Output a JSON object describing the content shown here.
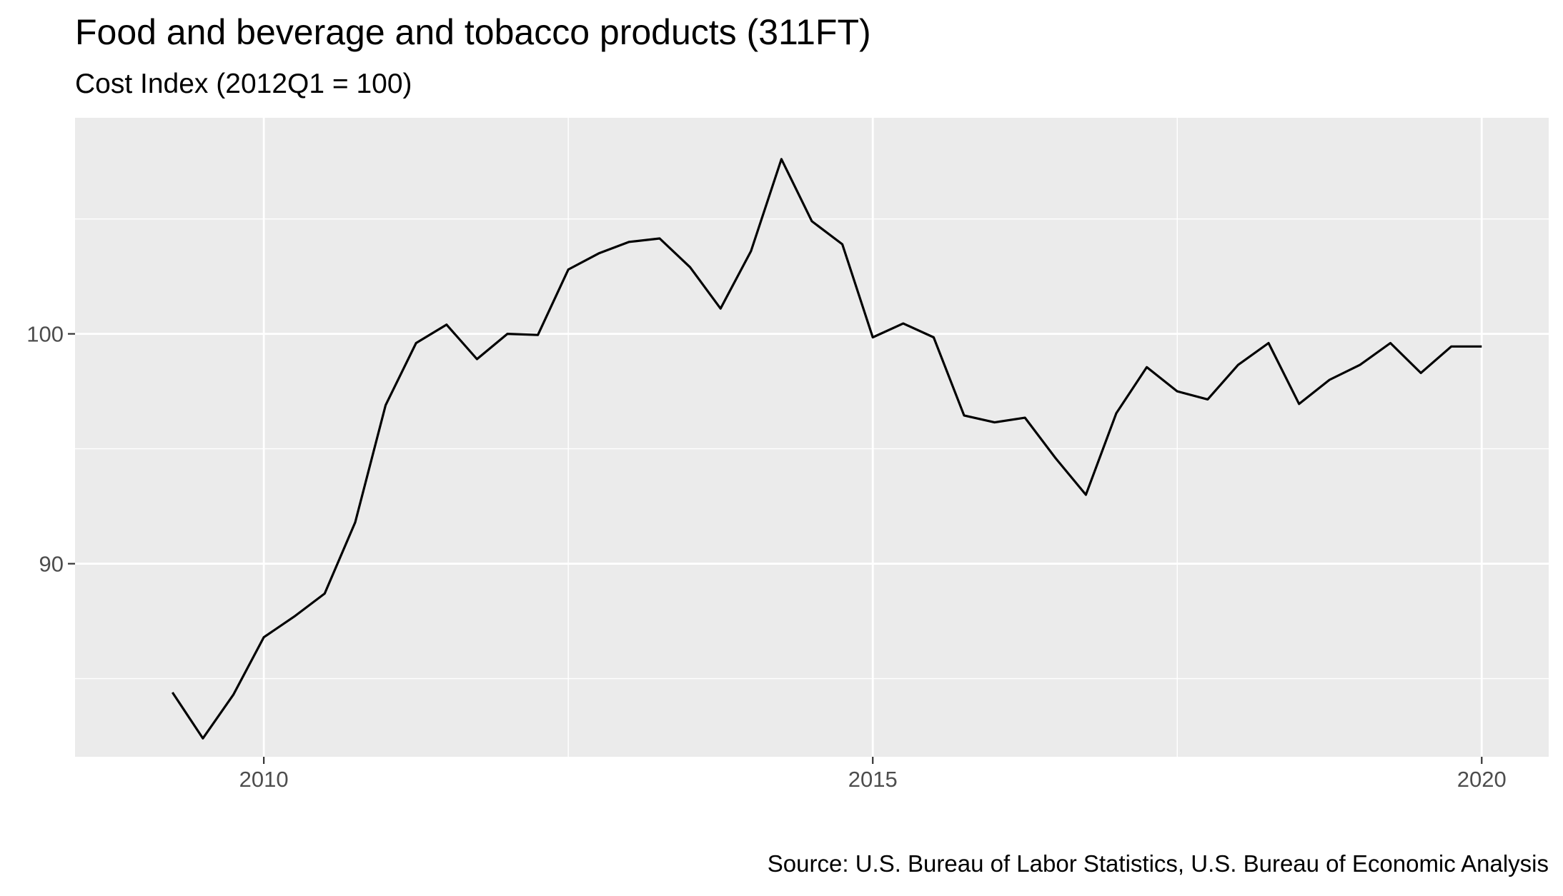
{
  "chart_data": {
    "type": "line",
    "title": "Food and beverage and tobacco products (311FT)",
    "subtitle": "Cost Index (2012Q1 = 100)",
    "caption": "Source: U.S. Bureau of Labor Statistics, U.S. Bureau of Economic Analysis",
    "xlabel": "",
    "ylabel": "",
    "xlim": [
      2008.45,
      2020.55
    ],
    "ylim": [
      81.6,
      109.4
    ],
    "x_ticks": [
      {
        "value": 2010,
        "label": "2010"
      },
      {
        "value": 2015,
        "label": "2015"
      },
      {
        "value": 2020,
        "label": "2020"
      }
    ],
    "x_minor_ticks": [
      2012.5,
      2017.5
    ],
    "y_ticks": [
      {
        "value": 90,
        "label": "90"
      },
      {
        "value": 100,
        "label": "100"
      }
    ],
    "y_minor_ticks": [
      85,
      95,
      105
    ],
    "grid": true,
    "legend": "none",
    "colors": {
      "background": "#ebebeb",
      "grid": "#ffffff",
      "line": "#000000",
      "tick": "#333333"
    },
    "series": [
      {
        "x": [
          2009.25,
          2009.5,
          2009.75,
          2010.0,
          2010.25,
          2010.5,
          2010.75,
          2011.0,
          2011.25,
          2011.5,
          2011.75,
          2012.0,
          2012.25,
          2012.5,
          2012.75,
          2013.0,
          2013.25,
          2013.5,
          2013.75,
          2014.0,
          2014.25,
          2014.5,
          2014.75,
          2015.0,
          2015.25,
          2015.5,
          2015.75,
          2016.0,
          2016.25,
          2016.5,
          2016.75,
          2017.0,
          2017.25,
          2017.5,
          2017.75,
          2018.0,
          2018.25,
          2018.5,
          2018.75,
          2019.0,
          2019.25,
          2019.5,
          2019.75,
          2020.0
        ],
        "values": [
          84.4,
          82.4,
          84.3,
          86.8,
          87.7,
          88.7,
          91.8,
          96.9,
          99.6,
          100.4,
          98.9,
          100.0,
          99.95,
          102.8,
          103.5,
          104.0,
          104.15,
          102.9,
          101.1,
          103.6,
          107.6,
          104.9,
          103.9,
          99.85,
          100.45,
          99.85,
          96.45,
          96.15,
          96.35,
          94.6,
          93.0,
          96.55,
          98.55,
          97.5,
          97.15,
          98.65,
          99.6,
          96.95,
          98.0,
          98.65,
          99.6,
          98.3,
          99.45,
          99.45
        ]
      }
    ]
  }
}
